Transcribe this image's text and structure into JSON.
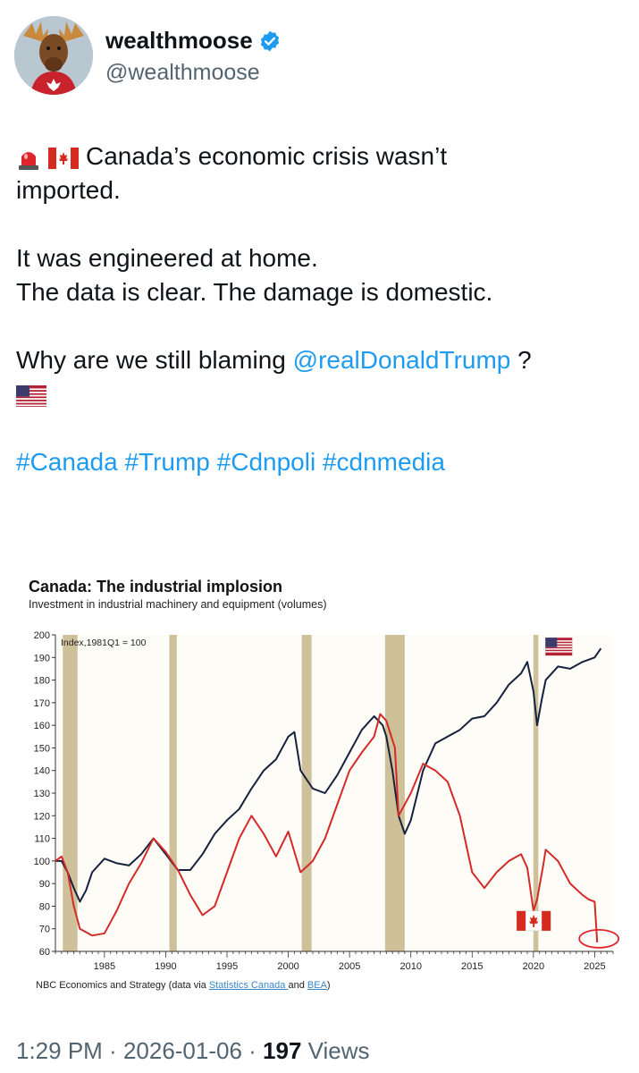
{
  "user": {
    "display_name": "wealthmoose",
    "handle": "@wealthmoose",
    "verified_color": "#1d9bf0"
  },
  "tweet": {
    "line1_emoji": [
      "police-light",
      "canada-flag"
    ],
    "line1_text": "Canada’s economic crisis wasn’t",
    "line2": "imported.",
    "line3": "It was engineered at home.",
    "line4": "The data is clear. The damage is domestic.",
    "line5_pre": "Why are we still blaming ",
    "mention": "@realDonaldTrump",
    "line5_post": " ?",
    "line6_emoji": "us-flag",
    "hashtags": [
      "#Canada",
      "#Trump",
      "#Cdnpoli",
      "#cdnmedia"
    ]
  },
  "chart_data": {
    "type": "line",
    "title": "Canada: The industrial implosion",
    "subtitle": "Investment in industrial machinery and equipment (volumes)",
    "annotation": "Index,1981Q1 = 100",
    "source_pre": "NBC Economics and Strategy (data via ",
    "source_link1": "Statistics Canada ",
    "source_mid": "and ",
    "source_link2": "BEA",
    "source_post": ")",
    "xlim": [
      1981,
      2026.5
    ],
    "ylim": [
      60,
      200
    ],
    "yticks": [
      60,
      70,
      80,
      90,
      100,
      110,
      120,
      130,
      140,
      150,
      160,
      170,
      180,
      190,
      200
    ],
    "xticks": [
      1985,
      1990,
      1995,
      2000,
      2005,
      2010,
      2015,
      2020,
      2025
    ],
    "recessions": [
      [
        1981.6,
        1982.8
      ],
      [
        1990.3,
        1990.9
      ],
      [
        2001.1,
        2001.9
      ],
      [
        2007.9,
        2009.5
      ],
      [
        2020.0,
        2020.4
      ]
    ],
    "grid": false,
    "series": [
      {
        "name": "",
        "flag": "us-flag",
        "color": "#16213d",
        "x": [
          1981,
          1981.5,
          1982,
          1982.5,
          1983,
          1983.5,
          1984,
          1985,
          1986,
          1987,
          1988,
          1989,
          1990,
          1991,
          1992,
          1993,
          1994,
          1995,
          1996,
          1997,
          1998,
          1999,
          2000,
          2000.5,
          2001,
          2002,
          2003,
          2004,
          2005,
          2006,
          2007,
          2007.7,
          2008,
          2008.5,
          2009,
          2009.5,
          2010,
          2011,
          2012,
          2013,
          2014,
          2015,
          2016,
          2017,
          2018,
          2019,
          2019.5,
          2020,
          2020.3,
          2020.7,
          2021,
          2022,
          2023,
          2024,
          2025,
          2025.5
        ],
        "values": [
          100,
          100,
          95,
          88,
          82,
          87,
          95,
          101,
          99,
          98,
          103,
          110,
          103,
          96,
          96,
          103,
          112,
          118,
          123,
          132,
          140,
          145,
          155,
          157,
          140,
          132,
          130,
          138,
          148,
          158,
          164,
          160,
          155,
          140,
          120,
          112,
          118,
          140,
          152,
          155,
          158,
          163,
          164,
          170,
          178,
          183,
          188,
          175,
          160,
          172,
          180,
          186,
          185,
          188,
          190,
          194
        ]
      },
      {
        "name": "",
        "flag": "canada-flag",
        "color": "#d42a2a",
        "x": [
          1981,
          1981.5,
          1982,
          1982.5,
          1983,
          1984,
          1985,
          1986,
          1987,
          1988,
          1989,
          1990,
          1991,
          1992,
          1993,
          1994,
          1995,
          1996,
          1997,
          1998,
          1999,
          2000,
          2001,
          2002,
          2003,
          2004,
          2005,
          2006,
          2007,
          2007.5,
          2008,
          2008.7,
          2009,
          2010,
          2011,
          2012,
          2013,
          2014,
          2015,
          2016,
          2017,
          2018,
          2019,
          2019.5,
          2020,
          2020.3,
          2020.8,
          2021,
          2022,
          2023,
          2024,
          2024.5,
          2025,
          2025.2
        ],
        "values": [
          100,
          102,
          95,
          80,
          70,
          67,
          68,
          78,
          90,
          99,
          110,
          104,
          96,
          85,
          76,
          80,
          95,
          110,
          120,
          112,
          102,
          113,
          95,
          100,
          110,
          125,
          140,
          148,
          155,
          165,
          162,
          150,
          120,
          130,
          143,
          140,
          135,
          120,
          95,
          88,
          95,
          100,
          103,
          97,
          78,
          83,
          98,
          105,
          100,
          90,
          85,
          83,
          82,
          64
        ]
      }
    ]
  },
  "footer": {
    "time": "1:29 PM",
    "separator": " · ",
    "date": "2026-01-06",
    "views_count": "197",
    "views_label": " Views"
  }
}
